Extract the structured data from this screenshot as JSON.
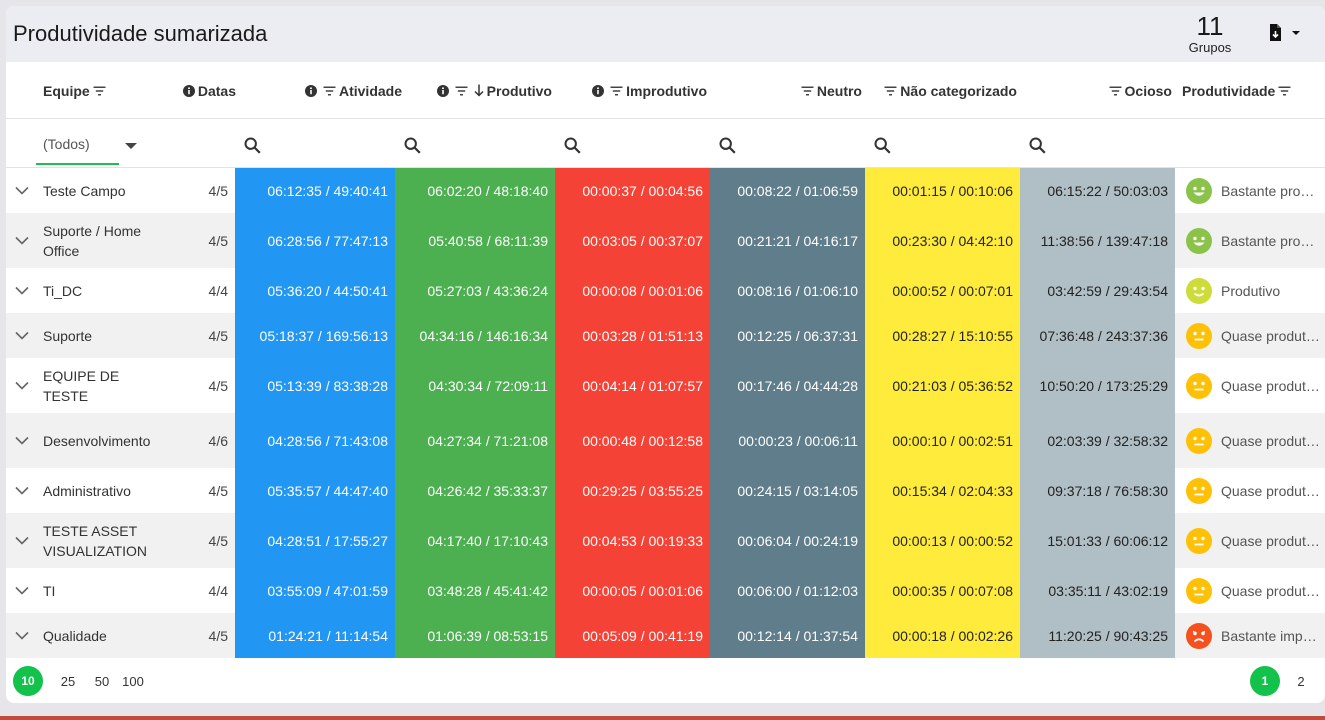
{
  "title": "Produtividade sumarizada",
  "groups": {
    "count": "11",
    "label": "Grupos"
  },
  "icons": {
    "export": "file-export-icon",
    "filter": "filter-icon",
    "info": "info-icon",
    "sort": "arrow-down-icon",
    "search": "search-icon",
    "expand": "chevron-down-icon"
  },
  "columns": {
    "equipe": "Equipe",
    "datas": "Datas",
    "atividade": "Atividade",
    "produtivo": "Produtivo",
    "improdutivo": "Improdutivo",
    "neutro": "Neutro",
    "nao_categorizado": "Não categorizado",
    "ocioso": "Ocioso",
    "produtividade": "Produtividade"
  },
  "filter": {
    "team_select": "(Todos)"
  },
  "colors": {
    "atividade": "#2196f3",
    "produtivo": "#4caf50",
    "improdutivo": "#f44336",
    "neutro": "#607d8b",
    "nao_categorizado": "#ffeb3b",
    "ocioso": "#b0bec5",
    "accent": "#13c24a"
  },
  "rows": [
    {
      "team": "Teste Campo",
      "dates": "4/5",
      "atividade": "06:12:35 / 49:40:41",
      "produtivo": "06:02:20 / 48:18:40",
      "improdutivo": "00:00:37 / 00:04:56",
      "neutro": "00:08:22 / 01:06:59",
      "nao_categorizado": "00:01:15 / 00:10:06",
      "ocioso": "06:15:22 / 50:03:03",
      "produtividade": "Bastante produtivo",
      "face": "happy",
      "face_color": "#8bc34a"
    },
    {
      "team": "Suporte / Home Office",
      "dates": "4/5",
      "atividade": "06:28:56 / 77:47:13",
      "produtivo": "05:40:58 / 68:11:39",
      "improdutivo": "00:03:05 / 00:37:07",
      "neutro": "00:21:21 / 04:16:17",
      "nao_categorizado": "00:23:30 / 04:42:10",
      "ocioso": "11:38:56 / 139:47:18",
      "produtividade": "Bastante produtivo",
      "face": "happy",
      "face_color": "#8bc34a"
    },
    {
      "team": "Ti_DC",
      "dates": "4/4",
      "atividade": "05:36:20 / 44:50:41",
      "produtivo": "05:27:03 / 43:36:24",
      "improdutivo": "00:00:08 / 00:01:06",
      "neutro": "00:08:16 / 01:06:10",
      "nao_categorizado": "00:00:52 / 00:07:01",
      "ocioso": "03:42:59 / 29:43:54",
      "produtividade": "Produtivo",
      "face": "smile",
      "face_color": "#cddc39"
    },
    {
      "team": "Suporte",
      "dates": "4/5",
      "atividade": "05:18:37 / 169:56:13",
      "produtivo": "04:34:16 / 146:16:34",
      "improdutivo": "00:03:28 / 01:51:13",
      "neutro": "00:12:25 / 06:37:31",
      "nao_categorizado": "00:28:27 / 15:10:55",
      "ocioso": "07:36:48 / 243:37:36",
      "produtividade": "Quase produtivo",
      "face": "neutral",
      "face_color": "#ffc107"
    },
    {
      "team": "EQUIPE DE TESTE",
      "dates": "4/5",
      "atividade": "05:13:39 / 83:38:28",
      "produtivo": "04:30:34 / 72:09:11",
      "improdutivo": "00:04:14 / 01:07:57",
      "neutro": "00:17:46 / 04:44:28",
      "nao_categorizado": "00:21:03 / 05:36:52",
      "ocioso": "10:50:20 / 173:25:29",
      "produtividade": "Quase produtivo",
      "face": "neutral",
      "face_color": "#ffc107"
    },
    {
      "team": "Desenvolvimento",
      "dates": "4/6",
      "atividade": "04:28:56 / 71:43:08",
      "produtivo": "04:27:34 / 71:21:08",
      "improdutivo": "00:00:48 / 00:12:58",
      "neutro": "00:00:23 / 00:06:11",
      "nao_categorizado": "00:00:10 / 00:02:51",
      "ocioso": "02:03:39 / 32:58:32",
      "produtividade": "Quase produtivo",
      "face": "neutral",
      "face_color": "#ffc107"
    },
    {
      "team": "Administrativo",
      "dates": "4/5",
      "atividade": "05:35:57 / 44:47:40",
      "produtivo": "04:26:42 / 35:33:37",
      "improdutivo": "00:29:25 / 03:55:25",
      "neutro": "00:24:15 / 03:14:05",
      "nao_categorizado": "00:15:34 / 02:04:33",
      "ocioso": "09:37:18 / 76:58:30",
      "produtividade": "Quase produtivo",
      "face": "neutral",
      "face_color": "#ffc107"
    },
    {
      "team": "TESTE ASSET VISUALIZATION",
      "dates": "4/5",
      "atividade": "04:28:51 / 17:55:27",
      "produtivo": "04:17:40 / 17:10:43",
      "improdutivo": "00:04:53 / 00:19:33",
      "neutro": "00:06:04 / 00:24:19",
      "nao_categorizado": "00:00:13 / 00:00:52",
      "ocioso": "15:01:33 / 60:06:12",
      "produtividade": "Quase produtivo",
      "face": "neutral",
      "face_color": "#ffc107"
    },
    {
      "team": "TI",
      "dates": "4/4",
      "atividade": "03:55:09 / 47:01:59",
      "produtivo": "03:48:28 / 45:41:42",
      "improdutivo": "00:00:05 / 00:01:06",
      "neutro": "00:06:00 / 01:12:03",
      "nao_categorizado": "00:00:35 / 00:07:08",
      "ocioso": "03:35:11 / 43:02:19",
      "produtividade": "Quase produtivo",
      "face": "neutral",
      "face_color": "#ffc107"
    },
    {
      "team": "Qualidade",
      "dates": "4/5",
      "atividade": "01:24:21 / 11:14:54",
      "produtivo": "01:06:39 / 08:53:15",
      "improdutivo": "00:05:09 / 00:41:19",
      "neutro": "00:12:14 / 01:37:54",
      "nao_categorizado": "00:00:18 / 00:02:26",
      "ocioso": "11:20:25 / 90:43:25",
      "produtividade": "Bastante improdutivo",
      "face": "sad",
      "face_color": "#f4511e"
    }
  ],
  "page_sizes": [
    "10",
    "25",
    "50",
    "100"
  ],
  "selected_page_size": "10",
  "pages": [
    "1",
    "2"
  ],
  "current_page": "1"
}
